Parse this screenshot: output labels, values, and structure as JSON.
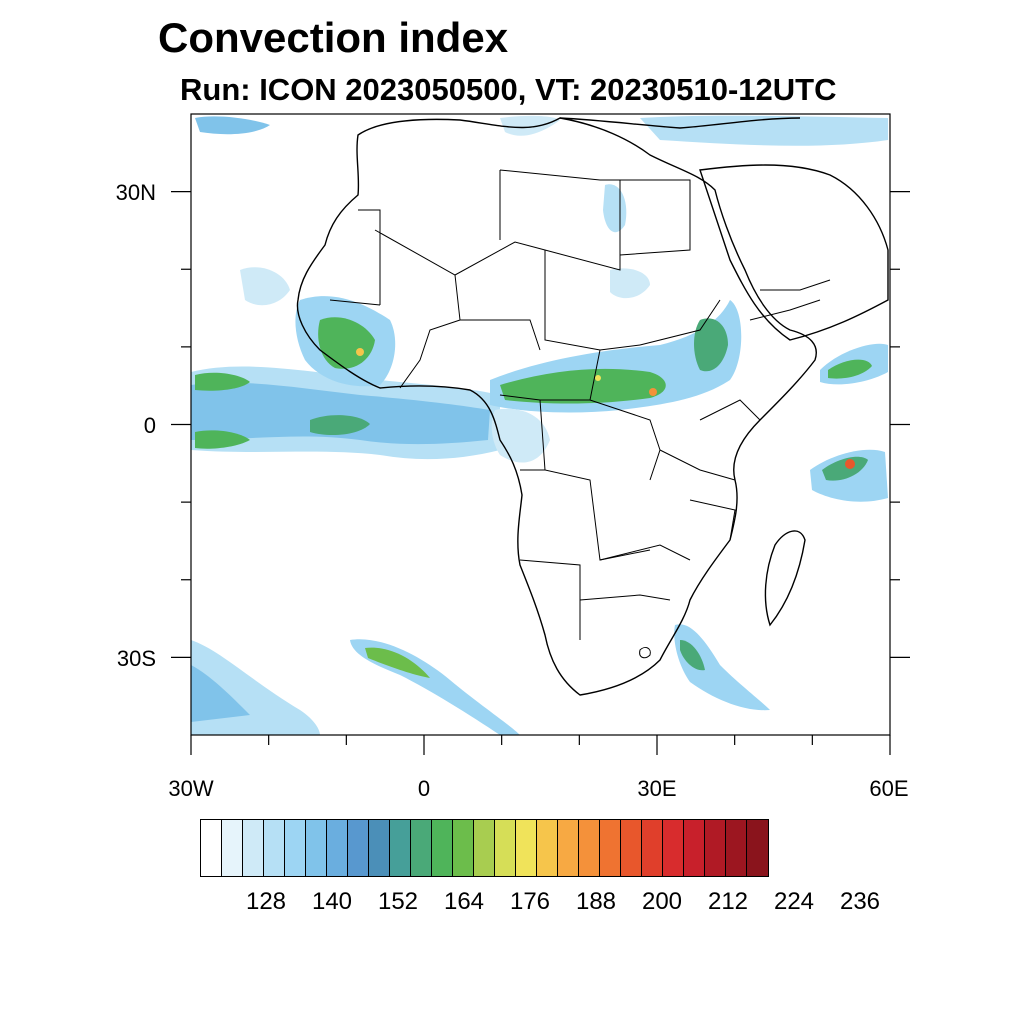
{
  "title": "Convection index",
  "subtitle": "Run: ICON 2023050500,  VT: 20230510-12UTC",
  "axes": {
    "lat_labels": [
      "30N",
      "0",
      "30S"
    ],
    "lon_labels": [
      "30W",
      "0",
      "30E",
      "60E"
    ],
    "lon_range": [
      -30,
      60
    ],
    "lat_range": [
      -40,
      40
    ]
  },
  "colorbar": {
    "colors": [
      "#ffffff",
      "#e6f4fb",
      "#cfeaf7",
      "#b6e0f5",
      "#9dd5f3",
      "#80c3ea",
      "#6aaedf",
      "#5898cf",
      "#4b8fb8",
      "#469f99",
      "#4aa978",
      "#4fb45a",
      "#6cbd4b",
      "#a8cd50",
      "#d6de57",
      "#f0e35a",
      "#f6c54b",
      "#f7a943",
      "#f4913a",
      "#ef7331",
      "#e8572c",
      "#e03f2b",
      "#d82c2d",
      "#c8202b",
      "#b01a25",
      "#9c1620",
      "#8a141c"
    ],
    "labels": [
      "128",
      "140",
      "152",
      "164",
      "176",
      "188",
      "200",
      "212",
      "224",
      "236"
    ]
  }
}
